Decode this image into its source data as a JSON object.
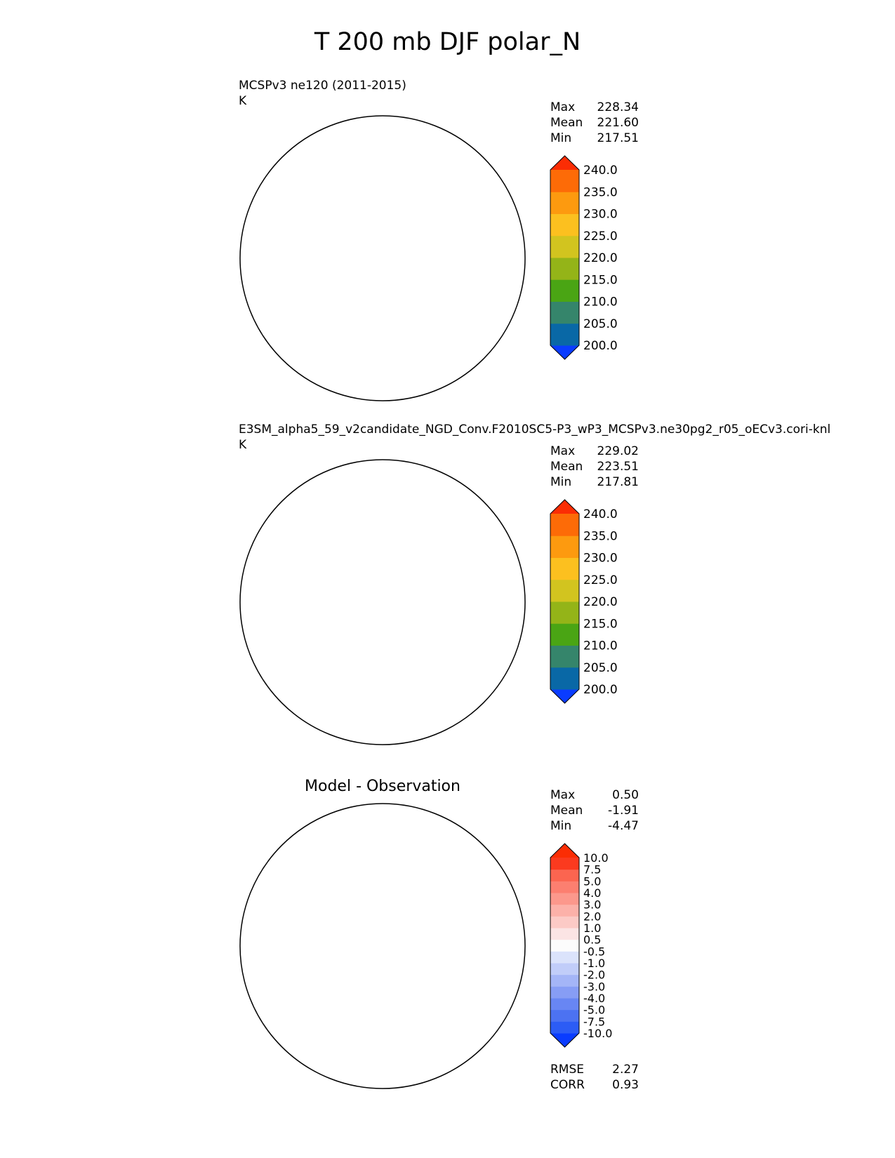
{
  "figure": {
    "title": "T 200 mb DJF polar_N"
  },
  "panels": [
    {
      "title": "MCSPv3 ne120 (2011-2015)",
      "units": "K",
      "stats": {
        "labels": [
          "Max",
          "Mean",
          "Min"
        ],
        "values": [
          "228.34",
          "221.60",
          "217.51"
        ]
      },
      "colorbar_ticks": [
        "240.0",
        "235.0",
        "230.0",
        "225.0",
        "220.0",
        "215.0",
        "210.0",
        "205.0",
        "200.0"
      ],
      "blob": "a"
    },
    {
      "title": "E3SM_alpha5_59_v2candidate_NGD_Conv.F2010SC5-P3_wP3_MCSPv3.ne30pg2_r05_oECv3.cori-knl",
      "units": "K",
      "stats": {
        "labels": [
          "Max",
          "Mean",
          "Min"
        ],
        "values": [
          "229.02",
          "223.51",
          "217.81"
        ]
      },
      "colorbar_ticks": [
        "240.0",
        "235.0",
        "230.0",
        "225.0",
        "220.0",
        "215.0",
        "210.0",
        "205.0",
        "200.0"
      ],
      "blob": "b"
    },
    {
      "title": "Model - Observation",
      "units": "",
      "stats": {
        "labels": [
          "Max",
          "Mean",
          "Min"
        ],
        "values": [
          "0.50",
          "-1.91",
          "-4.47"
        ]
      },
      "colorbar_ticks": [
        "10.0",
        "7.5",
        "5.0",
        "4.0",
        "3.0",
        "2.0",
        "1.0",
        "0.5",
        "-0.5",
        "-1.0",
        "-2.0",
        "-3.0",
        "-4.0",
        "-5.0",
        "-7.5",
        "-10.0"
      ],
      "extra_stats": {
        "labels": [
          "RMSE",
          "CORR"
        ],
        "values": [
          "2.27",
          "0.93"
        ]
      },
      "blob": "c"
    }
  ],
  "chart_data": [
    {
      "type": "heatmap",
      "projection": "north polar stereographic",
      "title": "MCSPv3 ne120 (2011-2015)",
      "units": "K",
      "max": 228.34,
      "mean": 221.6,
      "min": 217.51,
      "levels": [
        200,
        205,
        210,
        215,
        220,
        225,
        230,
        235,
        240
      ],
      "colors": [
        "#0a3cff",
        "#0968a6",
        "#35856b",
        "#4aa514",
        "#94b418",
        "#d2c41f",
        "#fcc01f",
        "#fd9a0f",
        "#fd6b07",
        "#fb2d04"
      ]
    },
    {
      "type": "heatmap",
      "projection": "north polar stereographic",
      "title": "E3SM_alpha5_59_v2candidate_NGD_Conv.F2010SC5-P3_wP3_MCSPv3.ne30pg2_r05_oECv3.cori-knl",
      "units": "K",
      "max": 229.02,
      "mean": 223.51,
      "min": 217.81,
      "levels": [
        200,
        205,
        210,
        215,
        220,
        225,
        230,
        235,
        240
      ],
      "colors": [
        "#0a3cff",
        "#0968a6",
        "#35856b",
        "#4aa514",
        "#94b418",
        "#d2c41f",
        "#fcc01f",
        "#fd9a0f",
        "#fd6b07",
        "#fb2d04"
      ]
    },
    {
      "type": "heatmap",
      "projection": "north polar stereographic",
      "title": "Model - Observation",
      "max": 0.5,
      "mean": -1.91,
      "min": -4.47,
      "rmse": 2.27,
      "corr": 0.93,
      "levels": [
        -10,
        -7.5,
        -5,
        -4,
        -3,
        -2,
        -1,
        -0.5,
        0.5,
        1,
        2,
        3,
        4,
        5,
        7.5,
        10
      ],
      "colors": [
        "#0a3cff",
        "#2c5cf5",
        "#4c72f2",
        "#6886f3",
        "#879df5",
        "#a4b5f7",
        "#c1cdf9",
        "#dbe3fb",
        "#fcfcfc",
        "#fbe4e4",
        "#fccac6",
        "#fcb1a9",
        "#fc988c",
        "#fc7f70",
        "#fb6550",
        "#fb3a1f",
        "#fb2d04"
      ]
    }
  ]
}
